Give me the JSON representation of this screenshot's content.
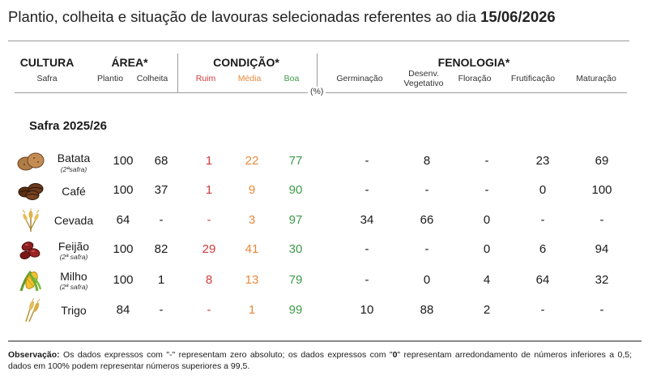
{
  "title": {
    "text": "Plantio, colheita e situação de lavouras selecionadas referentes ao dia",
    "date": "15/06/2026"
  },
  "header": {
    "cultura": "CULTURA",
    "safra": "Safra",
    "area": "ÁREA*",
    "plantio": "Plantio",
    "colheita": "Colheita",
    "condicao": "CONDIÇÃO*",
    "ruim": "Ruim",
    "media": "Média",
    "boa": "Boa",
    "fenologia": "FENOLOGIA*",
    "germinacao": "Germinação",
    "desenv_line1": "Desenv.",
    "desenv_line2": "Vegetativo",
    "floracao": "Floração",
    "frutificacao": "Frutificação",
    "maturacao": "Maturação",
    "unit": "(%)"
  },
  "section_label": "Safra 2025/26",
  "rows": [
    {
      "icon": "potato-icon",
      "name": "Batata",
      "note": "(2ªsafra)",
      "plantio": "100",
      "colheita": "68",
      "ruim": "1",
      "media": "22",
      "boa": "77",
      "germinacao": "-",
      "desenv": "8",
      "floracao": "-",
      "frutificacao": "23",
      "maturacao": "69"
    },
    {
      "icon": "coffee-icon",
      "name": "Café",
      "note": "",
      "plantio": "100",
      "colheita": "37",
      "ruim": "1",
      "media": "9",
      "boa": "90",
      "germinacao": "-",
      "desenv": "-",
      "floracao": "-",
      "frutificacao": "0",
      "maturacao": "100"
    },
    {
      "icon": "barley-icon",
      "name": "Cevada",
      "note": "",
      "plantio": "64",
      "colheita": "-",
      "ruim": "-",
      "media": "3",
      "boa": "97",
      "germinacao": "34",
      "desenv": "66",
      "floracao": "0",
      "frutificacao": "-",
      "maturacao": "-"
    },
    {
      "icon": "bean-icon",
      "name": "Feijão",
      "note": "(2ª safra)",
      "plantio": "100",
      "colheita": "82",
      "ruim": "29",
      "media": "41",
      "boa": "30",
      "germinacao": "-",
      "desenv": "-",
      "floracao": "0",
      "frutificacao": "6",
      "maturacao": "94"
    },
    {
      "icon": "corn-icon",
      "name": "Milho",
      "note": "(2ª safra)",
      "plantio": "100",
      "colheita": "1",
      "ruim": "8",
      "media": "13",
      "boa": "79",
      "germinacao": "-",
      "desenv": "0",
      "floracao": "4",
      "frutificacao": "64",
      "maturacao": "32"
    },
    {
      "icon": "wheat-icon",
      "name": "Trigo",
      "note": "",
      "plantio": "84",
      "colheita": "-",
      "ruim": "-",
      "media": "1",
      "boa": "99",
      "germinacao": "10",
      "desenv": "88",
      "floracao": "2",
      "frutificacao": "-",
      "maturacao": "-"
    }
  ],
  "observation": {
    "label": "Observação:",
    "text_a": " Os dados expressos com \"-\" representam zero absoluto; os dados expressos com \"",
    "zero": "0",
    "text_b": "\" representam arredondamento de números inferiores a 0,5; dados em 100% podem representar números superiores a 99,5."
  },
  "colors": {
    "ruim": "#d23a3a",
    "media": "#e8893a",
    "boa": "#3e9a4a"
  }
}
